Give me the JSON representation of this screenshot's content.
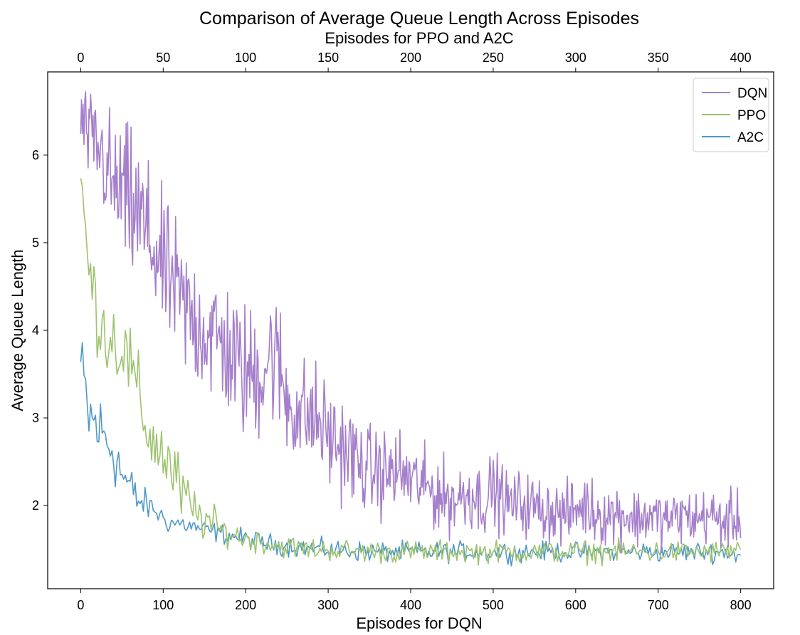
{
  "chart_data": {
    "type": "line",
    "title": "Comparison of Average Queue Length Across Episodes",
    "xlabel": "Episodes for DQN",
    "x2label": "Episodes for PPO and A2C",
    "ylabel": "Average Queue Length",
    "xlim": [
      -40,
      840
    ],
    "x2lim": [
      -20,
      420
    ],
    "ylim": [
      1.05,
      6.95
    ],
    "xticks": [
      "0",
      "100",
      "200",
      "300",
      "400",
      "500",
      "600",
      "700",
      "800"
    ],
    "x2ticks": [
      "0",
      "50",
      "100",
      "150",
      "200",
      "250",
      "300",
      "350",
      "400"
    ],
    "yticks": [
      "2",
      "3",
      "4",
      "5",
      "6"
    ],
    "grid": false,
    "legend_position": "top-right",
    "series": [
      {
        "name": "DQN",
        "color": "#a57fcb",
        "axis": "bottom",
        "x_start": 0,
        "x_step": 10,
        "values": [
          6.4,
          6.2,
          6.1,
          5.9,
          5.6,
          5.6,
          5.4,
          5.3,
          5.1,
          4.9,
          4.7,
          4.55,
          4.35,
          4.2,
          4.1,
          4.0,
          3.95,
          3.85,
          3.75,
          3.6,
          3.5,
          3.5,
          3.55,
          3.75,
          3.6,
          3.2,
          3.1,
          3.05,
          3.0,
          2.95,
          2.8,
          2.7,
          2.65,
          2.55,
          2.45,
          2.4,
          2.4,
          2.35,
          2.4,
          2.35,
          2.3,
          2.25,
          2.2,
          2.15,
          2.1,
          2.05,
          2.1,
          2.15,
          2.1,
          2.05,
          2.2,
          2.1,
          2.0,
          2.05,
          2.0,
          2.0,
          1.95,
          1.95,
          1.9,
          1.9,
          1.95,
          2.0,
          1.95,
          1.9,
          1.9,
          1.9,
          1.9,
          1.85,
          1.85,
          1.9,
          1.85,
          1.85,
          1.85,
          1.9,
          1.85,
          1.85,
          1.9,
          1.85,
          1.8,
          1.85,
          1.85
        ],
        "amplitude": [
          0.3,
          0.35,
          0.4,
          0.5,
          0.55,
          0.55,
          0.6,
          0.6,
          0.6,
          0.55,
          0.55,
          0.55,
          0.55,
          0.55,
          0.55,
          0.55,
          0.55,
          0.55,
          0.55,
          0.55,
          0.55,
          0.55,
          0.55,
          0.55,
          0.55,
          0.45,
          0.45,
          0.45,
          0.45,
          0.45,
          0.4,
          0.4,
          0.4,
          0.4,
          0.35,
          0.35,
          0.35,
          0.35,
          0.35,
          0.35,
          0.3,
          0.3,
          0.3,
          0.3,
          0.3,
          0.28,
          0.28,
          0.3,
          0.28,
          0.28,
          0.3,
          0.28,
          0.25,
          0.25,
          0.25,
          0.25,
          0.25,
          0.25,
          0.25,
          0.25,
          0.25,
          0.25,
          0.25,
          0.25,
          0.25,
          0.25,
          0.25,
          0.25,
          0.22,
          0.22,
          0.22,
          0.22,
          0.22,
          0.22,
          0.22,
          0.22,
          0.22,
          0.22,
          0.22,
          0.22,
          0.22
        ]
      },
      {
        "name": "PPO",
        "color": "#9cc36e",
        "axis": "top",
        "x_start": 0,
        "x_step": 5,
        "values": [
          5.7,
          4.7,
          4.2,
          4.0,
          3.9,
          3.8,
          3.6,
          3.2,
          2.9,
          2.7,
          2.6,
          2.4,
          2.2,
          2.0,
          1.9,
          1.85,
          1.78,
          1.72,
          1.68,
          1.65,
          1.62,
          1.6,
          1.58,
          1.56,
          1.54,
          1.53,
          1.52,
          1.51,
          1.5,
          1.5,
          1.5,
          1.49,
          1.49,
          1.48,
          1.48,
          1.48,
          1.47,
          1.47,
          1.47,
          1.47,
          1.47,
          1.47,
          1.47,
          1.47,
          1.47,
          1.47,
          1.47,
          1.47,
          1.47,
          1.47,
          1.47,
          1.47,
          1.47,
          1.47,
          1.47,
          1.47,
          1.47,
          1.47,
          1.47,
          1.47,
          1.47,
          1.47,
          1.47,
          1.47,
          1.47,
          1.47,
          1.47,
          1.47,
          1.47,
          1.47,
          1.47,
          1.47,
          1.47,
          1.47,
          1.47,
          1.47,
          1.47,
          1.47,
          1.47,
          1.5,
          1.5
        ],
        "amplitude": [
          0.2,
          0.35,
          0.3,
          0.35,
          0.35,
          0.35,
          0.35,
          0.35,
          0.35,
          0.3,
          0.3,
          0.3,
          0.28,
          0.25,
          0.2,
          0.18,
          0.15,
          0.12,
          0.1,
          0.1,
          0.1,
          0.1,
          0.09,
          0.09,
          0.09,
          0.09,
          0.09,
          0.09,
          0.09,
          0.09,
          0.09,
          0.09,
          0.09,
          0.09,
          0.09,
          0.09,
          0.09,
          0.09,
          0.09,
          0.09,
          0.09,
          0.09,
          0.09,
          0.09,
          0.09,
          0.09,
          0.09,
          0.09,
          0.09,
          0.09,
          0.09,
          0.09,
          0.09,
          0.09,
          0.09,
          0.09,
          0.09,
          0.09,
          0.09,
          0.09,
          0.09,
          0.09,
          0.09,
          0.09,
          0.09,
          0.09,
          0.09,
          0.09,
          0.09,
          0.09,
          0.09,
          0.09,
          0.09,
          0.09,
          0.09,
          0.09,
          0.09,
          0.09,
          0.09,
          0.09,
          0.09
        ]
      },
      {
        "name": "A2C",
        "color": "#4f98c6",
        "axis": "top",
        "x_start": 0,
        "x_step": 5,
        "values": [
          3.6,
          3.0,
          2.9,
          2.75,
          2.65,
          2.35,
          2.2,
          2.05,
          2.0,
          1.95,
          1.85,
          1.8,
          1.8,
          1.77,
          1.75,
          1.72,
          1.7,
          1.68,
          1.66,
          1.64,
          1.62,
          1.6,
          1.58,
          1.56,
          1.55,
          1.54,
          1.53,
          1.52,
          1.51,
          1.5,
          1.5,
          1.49,
          1.49,
          1.48,
          1.48,
          1.47,
          1.47,
          1.47,
          1.47,
          1.47,
          1.47,
          1.47,
          1.47,
          1.47,
          1.47,
          1.47,
          1.47,
          1.47,
          1.47,
          1.47,
          1.47,
          1.47,
          1.47,
          1.47,
          1.47,
          1.47,
          1.47,
          1.47,
          1.47,
          1.47,
          1.47,
          1.47,
          1.47,
          1.47,
          1.47,
          1.47,
          1.47,
          1.47,
          1.47,
          1.47,
          1.47,
          1.47,
          1.47,
          1.47,
          1.47,
          1.47,
          1.47,
          1.47,
          1.47,
          1.45,
          1.42
        ],
        "amplitude": [
          0.3,
          0.4,
          0.35,
          0.3,
          0.3,
          0.25,
          0.2,
          0.15,
          0.12,
          0.1,
          0.1,
          0.09,
          0.08,
          0.08,
          0.08,
          0.08,
          0.08,
          0.08,
          0.08,
          0.08,
          0.08,
          0.08,
          0.08,
          0.08,
          0.08,
          0.08,
          0.08,
          0.08,
          0.08,
          0.08,
          0.08,
          0.08,
          0.08,
          0.08,
          0.08,
          0.08,
          0.08,
          0.08,
          0.08,
          0.08,
          0.08,
          0.08,
          0.08,
          0.08,
          0.08,
          0.08,
          0.08,
          0.08,
          0.08,
          0.08,
          0.08,
          0.08,
          0.08,
          0.08,
          0.08,
          0.08,
          0.08,
          0.08,
          0.08,
          0.08,
          0.08,
          0.08,
          0.08,
          0.08,
          0.08,
          0.08,
          0.08,
          0.08,
          0.08,
          0.08,
          0.08,
          0.08,
          0.08,
          0.08,
          0.08,
          0.08,
          0.08,
          0.08,
          0.08,
          0.08,
          0.08
        ]
      }
    ]
  }
}
